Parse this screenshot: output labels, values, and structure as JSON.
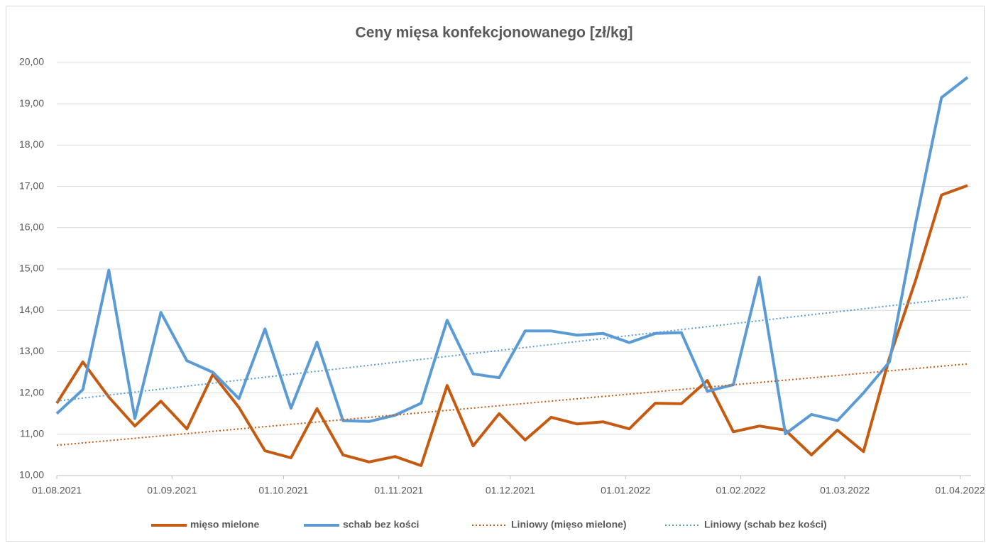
{
  "chart_data": {
    "type": "line",
    "title": "Ceny mięsa konfekcjonowanego [zł/kg]",
    "x": [
      "01.08.2021",
      "08.08.2021",
      "15.08.2021",
      "22.08.2021",
      "29.08.2021",
      "05.09.2021",
      "12.09.2021",
      "19.09.2021",
      "26.09.2021",
      "03.10.2021",
      "10.10.2021",
      "17.10.2021",
      "24.10.2021",
      "31.10.2021",
      "07.11.2021",
      "14.11.2021",
      "21.11.2021",
      "28.11.2021",
      "05.12.2021",
      "12.12.2021",
      "19.12.2021",
      "26.12.2021",
      "02.01.2022",
      "09.01.2022",
      "16.01.2022",
      "23.01.2022",
      "30.01.2022",
      "06.02.2022",
      "13.02.2022",
      "20.02.2022",
      "27.02.2022",
      "06.03.2022",
      "13.03.2022",
      "20.03.2022",
      "27.03.2022",
      "03.04.2022"
    ],
    "series": [
      {
        "name": "mięso mielone",
        "color": "#c55a11",
        "values": [
          11.75,
          12.75,
          11.9,
          11.2,
          11.8,
          11.13,
          12.45,
          11.65,
          10.6,
          10.43,
          11.62,
          10.5,
          10.33,
          10.46,
          10.24,
          12.18,
          10.72,
          11.5,
          10.86,
          11.41,
          11.25,
          11.3,
          11.13,
          11.75,
          11.74,
          12.3,
          11.06,
          11.2,
          11.1,
          10.5,
          11.1,
          10.58,
          12.85,
          14.72,
          16.79,
          17.02
        ]
      },
      {
        "name": "schab bez kości",
        "color": "#5b9bd5",
        "values": [
          11.5,
          12.08,
          14.97,
          11.38,
          13.95,
          12.78,
          12.5,
          11.86,
          13.55,
          11.63,
          13.23,
          11.33,
          11.31,
          11.46,
          11.75,
          13.76,
          12.46,
          12.37,
          13.5,
          13.5,
          13.4,
          13.44,
          13.22,
          13.44,
          13.46,
          12.04,
          12.2,
          14.8,
          11.01,
          11.48,
          11.33,
          12.0,
          12.75,
          16.1,
          19.15,
          19.64
        ]
      }
    ],
    "trendlines": [
      {
        "name": "Liniowy (mięso mielone)",
        "color": "#c55a11",
        "series": 0
      },
      {
        "name": "Liniowy (schab bez kości)",
        "color": "#5b9bd5",
        "series": 1
      }
    ],
    "xlim": [
      "01.08.2021",
      "03.04.2022"
    ],
    "xticks": [
      "01.08.2021",
      "01.09.2021",
      "01.10.2021",
      "01.11.2021",
      "01.12.2021",
      "01.01.2022",
      "01.02.2022",
      "01.03.2022",
      "01.04.2022"
    ],
    "ylim": [
      10,
      20
    ],
    "yticks": [
      {
        "value": 10,
        "label": "10,00"
      },
      {
        "value": 11,
        "label": "11,00"
      },
      {
        "value": 12,
        "label": "12,00"
      },
      {
        "value": 13,
        "label": "13,00"
      },
      {
        "value": 14,
        "label": "14,00"
      },
      {
        "value": 15,
        "label": "15,00"
      },
      {
        "value": 16,
        "label": "16,00"
      },
      {
        "value": 17,
        "label": "17,00"
      },
      {
        "value": 18,
        "label": "18,00"
      },
      {
        "value": 19,
        "label": "19,00"
      },
      {
        "value": 20,
        "label": "20,00"
      }
    ],
    "grid": true
  }
}
